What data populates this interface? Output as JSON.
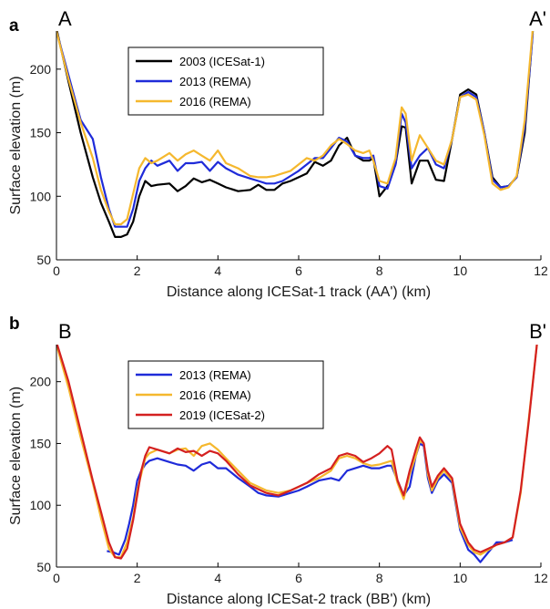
{
  "colors": {
    "black": "#000000",
    "blue": "#1f2bd9",
    "yellow": "#f5b82e",
    "red": "#d42020"
  },
  "chart_data": [
    {
      "type": "line",
      "panel_label": "a",
      "left_label": "A",
      "right_label": "A'",
      "xlabel": "Distance along ICESat-1 track (AA') (km)",
      "ylabel": "Surface elevation (m)",
      "xlim": [
        0,
        12
      ],
      "ylim": [
        50,
        230
      ],
      "xticks": [
        "0",
        "2",
        "4",
        "6",
        "8",
        "10",
        "12"
      ],
      "yticks": [
        "50",
        "100",
        "150",
        "200"
      ],
      "grid": false,
      "legend_position": "top-left",
      "series": [
        {
          "name": "2003 (ICESat-1)",
          "color": "#000000",
          "x": [
            0.0,
            0.3,
            0.6,
            0.9,
            1.1,
            1.3,
            1.45,
            1.6,
            1.75,
            1.9,
            2.05,
            2.2,
            2.35,
            2.5,
            2.8,
            3.0,
            3.2,
            3.4,
            3.6,
            3.8,
            4.0,
            4.2,
            4.5,
            4.8,
            5.0,
            5.2,
            5.4,
            5.6,
            5.8,
            6.0,
            6.2,
            6.4,
            6.6,
            6.8,
            7.0,
            7.2,
            7.4,
            7.6,
            7.75,
            7.85,
            8.0,
            8.2,
            8.4,
            8.55,
            8.65,
            8.8,
            9.0,
            9.2,
            9.4,
            9.6,
            9.8,
            10.0,
            10.2,
            10.4,
            10.6,
            10.8,
            11.0,
            11.2,
            11.4,
            11.6,
            11.8
          ],
          "y": [
            232,
            190,
            150,
            115,
            95,
            80,
            68,
            68,
            70,
            80,
            100,
            112,
            108,
            109,
            110,
            104,
            108,
            114,
            111,
            113,
            110,
            107,
            104,
            105,
            109,
            105,
            105,
            110,
            112,
            115,
            118,
            127,
            124,
            128,
            140,
            146,
            132,
            128,
            128,
            130,
            100,
            108,
            125,
            155,
            154,
            110,
            128,
            128,
            113,
            112,
            145,
            180,
            184,
            180,
            150,
            115,
            107,
            108,
            115,
            150,
            230
          ]
        },
        {
          "name": "2013 (REMA)",
          "color": "#1f2bd9",
          "x": [
            0.0,
            0.3,
            0.6,
            0.9,
            1.1,
            1.3,
            1.45,
            1.6,
            1.75,
            1.9,
            2.05,
            2.2,
            2.35,
            2.5,
            2.8,
            3.0,
            3.2,
            3.4,
            3.6,
            3.8,
            4.0,
            4.2,
            4.5,
            4.8,
            5.0,
            5.2,
            5.4,
            5.6,
            5.8,
            6.0,
            6.2,
            6.4,
            6.6,
            6.8,
            7.0,
            7.2,
            7.4,
            7.6,
            7.75,
            7.85,
            8.0,
            8.2,
            8.4,
            8.55,
            8.65,
            8.8,
            9.0,
            9.2,
            9.4,
            9.6,
            9.8,
            10.0,
            10.2,
            10.4,
            10.6,
            10.8,
            11.0,
            11.2,
            11.4,
            11.6,
            11.8
          ],
          "y": [
            230,
            195,
            160,
            145,
            115,
            90,
            76,
            76,
            76,
            90,
            112,
            122,
            128,
            124,
            128,
            120,
            126,
            126,
            127,
            120,
            127,
            122,
            117,
            114,
            112,
            110,
            110,
            112,
            116,
            120,
            125,
            130,
            130,
            138,
            146,
            143,
            132,
            130,
            130,
            132,
            108,
            106,
            125,
            165,
            158,
            122,
            132,
            138,
            125,
            122,
            145,
            178,
            182,
            178,
            150,
            113,
            107,
            108,
            115,
            155,
            228
          ]
        },
        {
          "name": "2016 (REMA)",
          "color": "#f5b82e",
          "x": [
            0.0,
            0.3,
            0.6,
            0.9,
            1.1,
            1.3,
            1.45,
            1.6,
            1.75,
            1.9,
            2.05,
            2.2,
            2.35,
            2.5,
            2.8,
            3.0,
            3.2,
            3.4,
            3.6,
            3.8,
            4.0,
            4.2,
            4.5,
            4.8,
            5.0,
            5.2,
            5.4,
            5.6,
            5.8,
            6.0,
            6.2,
            6.4,
            6.6,
            6.8,
            7.0,
            7.2,
            7.4,
            7.6,
            7.75,
            7.85,
            8.0,
            8.2,
            8.4,
            8.55,
            8.65,
            8.8,
            9.0,
            9.2,
            9.4,
            9.6,
            9.8,
            10.0,
            10.2,
            10.4,
            10.6,
            10.8,
            11.0,
            11.2,
            11.4,
            11.6,
            11.8
          ],
          "y": [
            230,
            192,
            158,
            130,
            105,
            88,
            78,
            78,
            82,
            102,
            122,
            130,
            126,
            128,
            134,
            128,
            133,
            136,
            132,
            128,
            136,
            126,
            122,
            116,
            115,
            115,
            116,
            118,
            120,
            125,
            130,
            128,
            132,
            140,
            145,
            141,
            136,
            134,
            136,
            128,
            112,
            110,
            130,
            170,
            165,
            128,
            148,
            138,
            128,
            125,
            145,
            178,
            180,
            176,
            148,
            110,
            105,
            107,
            116,
            160,
            232
          ]
        }
      ]
    },
    {
      "type": "line",
      "panel_label": "b",
      "left_label": "B",
      "right_label": "B'",
      "xlabel": "Distance along ICESat-2 track (BB') (km)",
      "ylabel": "Surface elevation (m)",
      "xlim": [
        0,
        12
      ],
      "ylim": [
        50,
        230
      ],
      "xticks": [
        "0",
        "2",
        "4",
        "6",
        "8",
        "10",
        "12"
      ],
      "yticks": [
        "50",
        "100",
        "150",
        "200"
      ],
      "grid": false,
      "legend_position": "top-left",
      "series": [
        {
          "name": "2013 (REMA)",
          "color": "#1f2bd9",
          "x": [
            1.25,
            1.4,
            1.55,
            1.7,
            1.8,
            1.9,
            2.0,
            2.1,
            2.2,
            2.3,
            2.5,
            2.8,
            3.0,
            3.2,
            3.4,
            3.6,
            3.8,
            4.0,
            4.2,
            4.5,
            4.8,
            5.0,
            5.2,
            5.5,
            5.8,
            6.0,
            6.2,
            6.5,
            6.8,
            7.0,
            7.2,
            7.4,
            7.6,
            7.8,
            8.0,
            8.2,
            8.3,
            8.45,
            8.6,
            8.75,
            8.9,
            9.0,
            9.1,
            9.2,
            9.3,
            9.45,
            9.6,
            9.8,
            10.0,
            10.2,
            10.35,
            10.5,
            10.7,
            10.9,
            11.1,
            11.3
          ],
          "y": [
            63,
            62,
            60,
            72,
            85,
            100,
            120,
            128,
            133,
            136,
            138,
            135,
            133,
            132,
            128,
            133,
            135,
            130,
            130,
            122,
            115,
            110,
            108,
            107,
            110,
            112,
            115,
            120,
            122,
            120,
            128,
            130,
            132,
            130,
            130,
            132,
            132,
            120,
            108,
            115,
            140,
            150,
            148,
            122,
            110,
            120,
            125,
            118,
            80,
            64,
            60,
            54,
            62,
            70,
            70,
            72
          ]
        },
        {
          "name": "2016 (REMA)",
          "color": "#f5b82e",
          "x": [
            0.0,
            0.3,
            0.6,
            0.9,
            1.1,
            1.3,
            1.45,
            1.6,
            1.75,
            1.9,
            2.0,
            2.1,
            2.2,
            2.3,
            2.5,
            2.8,
            3.0,
            3.2,
            3.4,
            3.6,
            3.8,
            4.0,
            4.2,
            4.5,
            4.8,
            5.0,
            5.2,
            5.5,
            5.8,
            6.0,
            6.2,
            6.5,
            6.8,
            7.0,
            7.2,
            7.4,
            7.6,
            7.8,
            8.0,
            8.2,
            8.3,
            8.45,
            8.6,
            8.75,
            8.9,
            9.0,
            9.1,
            9.2,
            9.3,
            9.45,
            9.6,
            9.8,
            10.0,
            10.2,
            10.35,
            10.5,
            10.7,
            10.9,
            11.1,
            11.3,
            11.5,
            11.7,
            11.9
          ],
          "y": [
            230,
            195,
            155,
            118,
            90,
            65,
            58,
            58,
            70,
            90,
            112,
            125,
            138,
            142,
            145,
            142,
            145,
            146,
            140,
            148,
            150,
            145,
            138,
            128,
            118,
            115,
            112,
            110,
            112,
            115,
            118,
            122,
            128,
            138,
            140,
            138,
            134,
            132,
            133,
            135,
            136,
            118,
            105,
            125,
            140,
            152,
            150,
            125,
            112,
            122,
            128,
            120,
            82,
            68,
            62,
            60,
            64,
            68,
            70,
            74,
            110,
            170,
            230
          ]
        },
        {
          "name": "2019 (ICESat-2)",
          "color": "#d42020",
          "x": [
            0.0,
            0.3,
            0.6,
            0.9,
            1.1,
            1.3,
            1.45,
            1.6,
            1.75,
            1.9,
            2.0,
            2.1,
            2.2,
            2.3,
            2.5,
            2.8,
            3.0,
            3.2,
            3.4,
            3.6,
            3.8,
            4.0,
            4.2,
            4.5,
            4.8,
            5.0,
            5.2,
            5.5,
            5.8,
            6.0,
            6.2,
            6.5,
            6.8,
            7.0,
            7.2,
            7.4,
            7.6,
            7.8,
            8.0,
            8.2,
            8.3,
            8.45,
            8.6,
            8.75,
            8.9,
            9.0,
            9.1,
            9.2,
            9.3,
            9.45,
            9.6,
            9.8,
            10.0,
            10.2,
            10.35,
            10.5,
            10.7,
            10.9,
            11.1,
            11.3,
            11.5,
            11.7,
            11.9
          ],
          "y": [
            232,
            200,
            160,
            120,
            95,
            70,
            58,
            57,
            65,
            88,
            108,
            128,
            140,
            147,
            145,
            142,
            146,
            143,
            144,
            140,
            144,
            142,
            136,
            125,
            116,
            113,
            110,
            108,
            112,
            115,
            118,
            125,
            130,
            140,
            142,
            140,
            135,
            138,
            142,
            148,
            145,
            120,
            108,
            128,
            145,
            155,
            150,
            128,
            115,
            124,
            130,
            122,
            85,
            70,
            64,
            62,
            65,
            68,
            70,
            74,
            112,
            168,
            230
          ]
        }
      ]
    }
  ]
}
